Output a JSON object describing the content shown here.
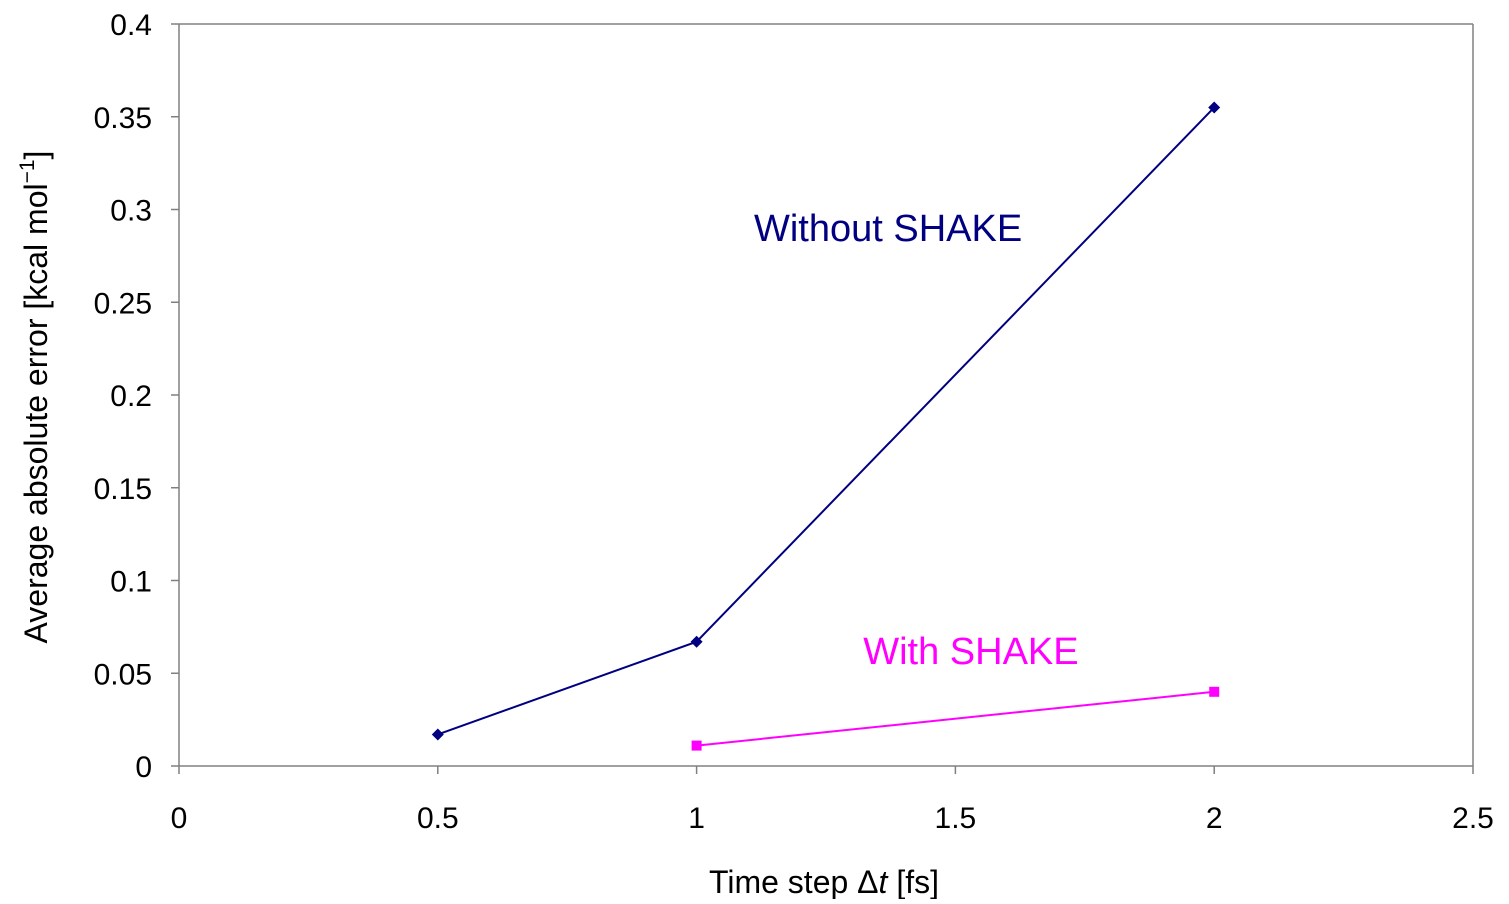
{
  "chart_data": {
    "type": "line",
    "title": "",
    "xlabel_parts": [
      "Time step Δ",
      "t",
      " [fs]"
    ],
    "ylabel_parts": [
      "Average absolute error [kcal mol",
      "−1",
      "]"
    ],
    "xlim": [
      0,
      2.5
    ],
    "ylim": [
      0,
      0.4
    ],
    "x_ticks": [
      0,
      0.5,
      1,
      1.5,
      2,
      2.5
    ],
    "x_tick_labels": [
      "0",
      "0.5",
      "1",
      "1.5",
      "2",
      "2.5"
    ],
    "y_ticks": [
      0,
      0.05,
      0.1,
      0.15,
      0.2,
      0.25,
      0.3,
      0.35,
      0.4
    ],
    "y_tick_labels": [
      "0",
      "0.05",
      "0.1",
      "0.15",
      "0.2",
      "0.25",
      "0.3",
      "0.35",
      "0.4"
    ],
    "grid": false,
    "legend": "none",
    "series": [
      {
        "name": "Without SHAKE",
        "color": "#000080",
        "marker": "diamond",
        "x": [
          0.5,
          1,
          2
        ],
        "y": [
          0.017,
          0.067,
          0.355
        ]
      },
      {
        "name": "With SHAKE",
        "color": "#ff00ff",
        "marker": "square",
        "x": [
          1,
          2
        ],
        "y": [
          0.011,
          0.04
        ]
      }
    ],
    "annotations": [
      {
        "text": "Without SHAKE",
        "color": "#000080",
        "x": 1.37,
        "y": 0.283
      },
      {
        "text": "With SHAKE",
        "color": "#ff00ff",
        "x": 1.53,
        "y": 0.055
      }
    ]
  }
}
